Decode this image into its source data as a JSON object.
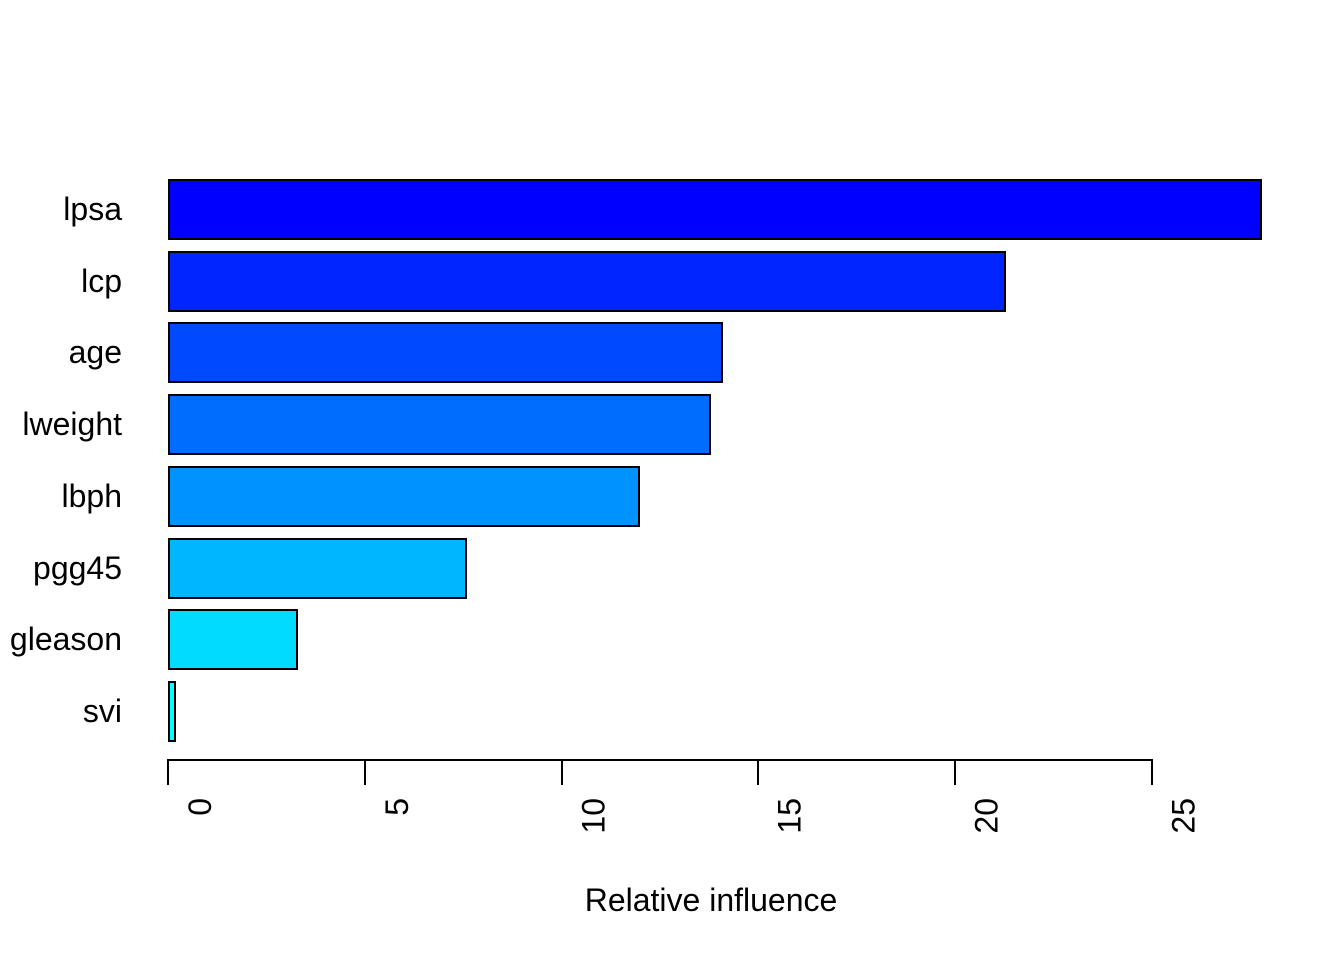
{
  "chart_data": {
    "type": "bar",
    "orientation": "horizontal",
    "title": "",
    "xlabel": "Relative influence",
    "ylabel": "",
    "categories": [
      "lpsa",
      "lcp",
      "age",
      "lweight",
      "lbph",
      "pgg45",
      "gleason",
      "svi"
    ],
    "values": [
      27.8,
      21.3,
      14.1,
      13.8,
      12.0,
      7.6,
      3.3,
      0.2
    ],
    "bar_colors": [
      "#0000FF",
      "#0025FF",
      "#0049FF",
      "#006DFF",
      "#0092FF",
      "#00B6FF",
      "#00DBFF",
      "#00FFFF"
    ],
    "bar_border_color": "#000000",
    "xticks": [
      0,
      5,
      10,
      15,
      20,
      25
    ],
    "xlim": [
      0,
      25
    ],
    "grid": false,
    "legend": false,
    "background_color": "#FFFFFF",
    "axis_color": "#000000"
  }
}
